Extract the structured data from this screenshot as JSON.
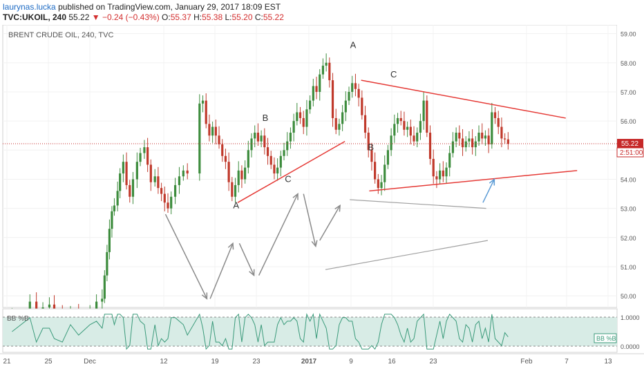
{
  "header": {
    "author": "laurynas.lucka",
    "published_text": "published on TradingView.com, January 29, 2017 18:09 EST",
    "symbol": "TVC:UKOIL, 240",
    "last": "55.22",
    "change": "−0.24 (−0.43%)",
    "ohlc": {
      "o_label": "O:",
      "o": "55.37",
      "h_label": "H:",
      "h": "55.38",
      "l_label": "L:",
      "l": "55.20",
      "c_label": "C:",
      "c": "55.22"
    }
  },
  "colors": {
    "up": "#3d8c3d",
    "down": "#c0392b",
    "trend": "#e53935",
    "arrow_gray": "#8a8a8a",
    "arrow_blue": "#5b9bd5",
    "indicator_line": "#3a9a7a",
    "indicator_fill": "#d8ece6",
    "price_tag": "#c62828"
  },
  "chart_data": [
    {
      "type": "candlestick",
      "title": "BRENT CRUDE OIL, 240, TVC",
      "x_tick_labels": [
        "21",
        "25",
        "Dec",
        "12",
        "19",
        "23",
        "2017",
        "9",
        "16",
        "23",
        "Feb",
        "7",
        "13"
      ],
      "y_tick_labels": [
        "50.00",
        "51.00",
        "52.00",
        "53.00",
        "54.00",
        "55.00",
        "56.00",
        "57.00",
        "58.00",
        "59.00"
      ],
      "ylim": [
        49.6,
        59.3
      ],
      "last_price": "55.22",
      "countdown": "2:51:00",
      "series": [
        {
          "value": 49.4,
          "x": 0.4
        },
        {
          "value": 49.8,
          "x": 1.5
        },
        {
          "value": 49.5,
          "x": 1.9
        },
        {
          "value": 49.6,
          "x": 2.3
        },
        {
          "value": 49.7,
          "x": 2.7
        },
        {
          "value": 49.5,
          "x": 3.0
        },
        {
          "value": 49.2,
          "x": 3.5
        },
        {
          "value": 49.4,
          "x": 4.0
        },
        {
          "value": 49.3,
          "x": 4.5
        },
        {
          "value": 49.5,
          "x": 5.2
        },
        {
          "value": 49.8,
          "x": 5.6
        },
        {
          "value": 49.9,
          "x": 5.95
        },
        {
          "value": 50.7,
          "x": 6.1
        },
        {
          "value": 51.5,
          "x": 6.25
        },
        {
          "value": 52.3,
          "x": 6.4
        },
        {
          "value": 52.9,
          "x": 6.55
        },
        {
          "value": 53.1,
          "x": 6.7
        },
        {
          "value": 53.6,
          "x": 6.9
        },
        {
          "value": 54.2,
          "x": 7.05
        },
        {
          "value": 54.6,
          "x": 7.25
        },
        {
          "value": 53.8,
          "x": 7.45
        },
        {
          "value": 53.4,
          "x": 7.65
        },
        {
          "value": 54.0,
          "x": 7.85
        },
        {
          "value": 54.6,
          "x": 8.1
        },
        {
          "value": 54.9,
          "x": 8.3
        },
        {
          "value": 55.1,
          "x": 8.55
        },
        {
          "value": 54.5,
          "x": 8.75
        },
        {
          "value": 53.9,
          "x": 8.95
        },
        {
          "value": 54.1,
          "x": 9.2
        },
        {
          "value": 53.7,
          "x": 9.4
        },
        {
          "value": 53.5,
          "x": 9.6
        },
        {
          "value": 53.2,
          "x": 9.8
        },
        {
          "value": 53.0,
          "x": 10.0
        },
        {
          "value": 53.4,
          "x": 10.2
        },
        {
          "value": 53.8,
          "x": 10.45
        },
        {
          "value": 54.1,
          "x": 10.7
        },
        {
          "value": 54.3,
          "x": 10.95
        },
        {
          "value": 54.2,
          "x": 11.2
        },
        {
          "value": 56.6,
          "x": 11.95
        },
        {
          "value": 56.7,
          "x": 12.15
        },
        {
          "value": 55.9,
          "x": 12.35
        },
        {
          "value": 55.5,
          "x": 12.55
        },
        {
          "value": 55.8,
          "x": 12.75
        },
        {
          "value": 55.5,
          "x": 12.95
        },
        {
          "value": 55.2,
          "x": 13.15
        },
        {
          "value": 54.8,
          "x": 13.35
        },
        {
          "value": 54.6,
          "x": 13.55
        },
        {
          "value": 53.9,
          "x": 13.75
        },
        {
          "value": 53.4,
          "x": 13.95
        },
        {
          "value": 53.8,
          "x": 14.15
        },
        {
          "value": 54.3,
          "x": 14.35
        },
        {
          "value": 54.0,
          "x": 14.55
        },
        {
          "value": 54.4,
          "x": 14.75
        },
        {
          "value": 55.0,
          "x": 14.95
        },
        {
          "value": 55.4,
          "x": 15.15
        },
        {
          "value": 55.6,
          "x": 15.35
        },
        {
          "value": 55.3,
          "x": 15.55
        },
        {
          "value": 55.5,
          "x": 15.75
        },
        {
          "value": 55.1,
          "x": 15.95
        },
        {
          "value": 54.8,
          "x": 16.15
        },
        {
          "value": 54.5,
          "x": 16.35
        },
        {
          "value": 54.2,
          "x": 16.55
        },
        {
          "value": 54.4,
          "x": 16.75
        },
        {
          "value": 54.8,
          "x": 16.95
        },
        {
          "value": 55.0,
          "x": 17.15
        },
        {
          "value": 55.3,
          "x": 17.35
        },
        {
          "value": 55.6,
          "x": 17.55
        },
        {
          "value": 56.0,
          "x": 17.75
        },
        {
          "value": 56.3,
          "x": 17.95
        },
        {
          "value": 56.1,
          "x": 18.15
        },
        {
          "value": 55.8,
          "x": 18.35
        },
        {
          "value": 56.4,
          "x": 18.55
        },
        {
          "value": 56.7,
          "x": 18.75
        },
        {
          "value": 57.2,
          "x": 18.95
        },
        {
          "value": 57.0,
          "x": 19.15
        },
        {
          "value": 57.6,
          "x": 19.35
        },
        {
          "value": 57.9,
          "x": 19.55
        },
        {
          "value": 58.0,
          "x": 19.75
        },
        {
          "value": 57.4,
          "x": 19.95
        },
        {
          "value": 56.1,
          "x": 20.15
        },
        {
          "value": 55.7,
          "x": 20.35
        },
        {
          "value": 55.9,
          "x": 20.55
        },
        {
          "value": 56.3,
          "x": 20.75
        },
        {
          "value": 56.7,
          "x": 20.95
        },
        {
          "value": 57.0,
          "x": 21.15
        },
        {
          "value": 57.3,
          "x": 21.35
        },
        {
          "value": 57.1,
          "x": 21.55
        },
        {
          "value": 56.8,
          "x": 21.75
        },
        {
          "value": 56.2,
          "x": 21.95
        },
        {
          "value": 55.6,
          "x": 22.15
        },
        {
          "value": 55.0,
          "x": 22.35
        },
        {
          "value": 54.6,
          "x": 22.55
        },
        {
          "value": 54.0,
          "x": 22.75
        },
        {
          "value": 53.7,
          "x": 22.95
        },
        {
          "value": 53.9,
          "x": 23.15
        },
        {
          "value": 54.5,
          "x": 23.35
        },
        {
          "value": 55.0,
          "x": 23.55
        },
        {
          "value": 55.5,
          "x": 23.75
        },
        {
          "value": 55.9,
          "x": 23.95
        },
        {
          "value": 56.1,
          "x": 24.15
        },
        {
          "value": 56.0,
          "x": 24.35
        },
        {
          "value": 55.7,
          "x": 24.55
        },
        {
          "value": 55.8,
          "x": 24.75
        },
        {
          "value": 55.5,
          "x": 24.95
        },
        {
          "value": 55.3,
          "x": 25.15
        },
        {
          "value": 55.6,
          "x": 25.35
        },
        {
          "value": 56.0,
          "x": 25.55
        },
        {
          "value": 56.7,
          "x": 25.75
        },
        {
          "value": 55.6,
          "x": 25.95
        },
        {
          "value": 54.7,
          "x": 26.15
        },
        {
          "value": 54.1,
          "x": 26.35
        },
        {
          "value": 54.0,
          "x": 26.55
        },
        {
          "value": 54.3,
          "x": 26.75
        },
        {
          "value": 54.1,
          "x": 26.95
        },
        {
          "value": 54.4,
          "x": 27.15
        },
        {
          "value": 54.9,
          "x": 27.35
        },
        {
          "value": 55.3,
          "x": 27.55
        },
        {
          "value": 55.6,
          "x": 27.75
        },
        {
          "value": 55.4,
          "x": 27.95
        },
        {
          "value": 55.1,
          "x": 28.15
        },
        {
          "value": 55.3,
          "x": 28.35
        },
        {
          "value": 55.4,
          "x": 28.55
        },
        {
          "value": 55.1,
          "x": 28.75
        },
        {
          "value": 55.3,
          "x": 28.95
        },
        {
          "value": 55.6,
          "x": 29.15
        },
        {
          "value": 55.4,
          "x": 29.35
        },
        {
          "value": 55.5,
          "x": 29.55
        },
        {
          "value": 55.2,
          "x": 29.75
        },
        {
          "value": 56.3,
          "x": 29.95
        },
        {
          "value": 56.1,
          "x": 30.15
        },
        {
          "value": 55.8,
          "x": 30.35
        },
        {
          "value": 55.4,
          "x": 30.55
        },
        {
          "value": 55.37,
          "x": 30.75
        },
        {
          "value": 55.22,
          "x": 30.95
        }
      ],
      "indicator_label": "BB %B",
      "indicator_ticks": [
        "1.0000",
        "0.0000"
      ],
      "annotations": [
        {
          "text": "A",
          "x": 14.2,
          "y": 53.0
        },
        {
          "text": "B",
          "x": 16.0,
          "y": 56.0
        },
        {
          "text": "C",
          "x": 17.4,
          "y": 53.9
        },
        {
          "text": "A",
          "x": 21.4,
          "y": 58.5
        },
        {
          "text": "B",
          "x": 22.5,
          "y": 55.0
        },
        {
          "text": "C",
          "x": 23.9,
          "y": 57.5
        }
      ]
    }
  ]
}
